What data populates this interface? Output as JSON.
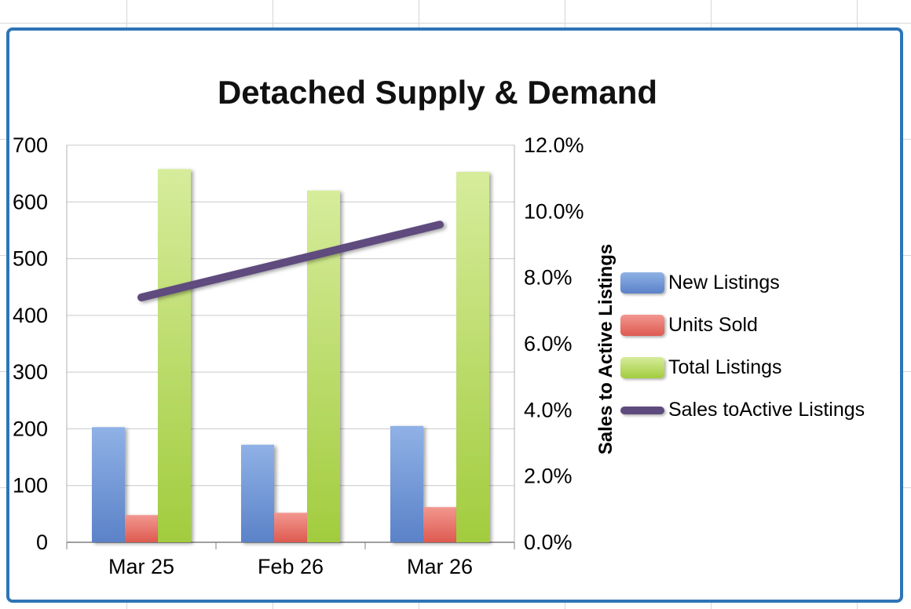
{
  "chart_data": {
    "type": "bar+line",
    "title": "Detached Supply & Demand",
    "categories": [
      "Mar 25",
      "Feb 26",
      "Mar 26"
    ],
    "series": [
      {
        "name": "New Listings",
        "type": "bar",
        "axis": "left",
        "gradient": [
          "#8FB1E6",
          "#5B82C8"
        ],
        "values": [
          203,
          172,
          205
        ]
      },
      {
        "name": "Units Sold",
        "type": "bar",
        "axis": "left",
        "gradient": [
          "#F2978F",
          "#DD5A50"
        ],
        "values": [
          48,
          52,
          62
        ]
      },
      {
        "name": "Total Listings",
        "type": "bar",
        "axis": "left",
        "gradient": [
          "#D6EC9B",
          "#A2CC3E"
        ],
        "values": [
          658,
          620,
          653
        ]
      },
      {
        "name": "Sales toActive Listings",
        "type": "line",
        "axis": "right",
        "color": "#5E4B7D",
        "values": [
          7.4,
          8.5,
          9.6
        ]
      }
    ],
    "left_axis": {
      "min": 0,
      "max": 700,
      "step": 100
    },
    "right_axis": {
      "min": 0,
      "max": 12,
      "step": 2,
      "unit": "%",
      "title": "Sales to Active Listings"
    },
    "grid": true,
    "legend_position": "right",
    "frame_color": "#2E75B6"
  }
}
